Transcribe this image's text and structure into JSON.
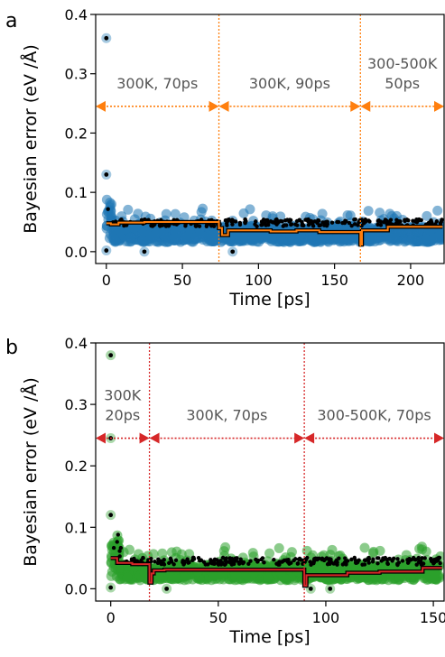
{
  "figure": {
    "panels": [
      {
        "label": "a",
        "xlabel": "Time [ps]",
        "ylabel": "Bayesian error (eV /Å)",
        "xlim": [
          -7,
          222
        ],
        "ylim": [
          -0.02,
          0.4
        ],
        "xticks": [
          0,
          50,
          100,
          150,
          200
        ],
        "yticks": [
          0.0,
          0.1,
          0.2,
          0.3,
          0.4
        ],
        "ytick_labels": [
          "0.0",
          "0.1",
          "0.2",
          "0.3",
          "0.4"
        ],
        "accent": "#ff7f0e",
        "scatter_color": "#1f77b4",
        "boundaries": [
          74,
          167
        ],
        "arrow_y": 0.245,
        "segments": [
          {
            "lines": [
              "300K, 70ps"
            ],
            "from": -7,
            "to": 74
          },
          {
            "lines": [
              "300K, 90ps"
            ],
            "from": 74,
            "to": 167
          },
          {
            "lines": [
              "300-500K",
              "50ps"
            ],
            "from": 167,
            "to": 222
          }
        ],
        "seed": 7,
        "tmax": 221,
        "base": 0.03,
        "band": 0.028,
        "mean_steps": [
          [
            0,
            0.048
          ],
          [
            3,
            0.046
          ],
          [
            8,
            0.049
          ],
          [
            25,
            0.05
          ],
          [
            74,
            0.04
          ],
          [
            76,
            0.028
          ],
          [
            80,
            0.036
          ],
          [
            108,
            0.034
          ],
          [
            125,
            0.036
          ],
          [
            140,
            0.033
          ],
          [
            167,
            0.012
          ],
          [
            168,
            0.036
          ],
          [
            185,
            0.042
          ]
        ],
        "outliers": [
          [
            0,
            0.36
          ],
          [
            0,
            0.13
          ],
          [
            0,
            0.002
          ],
          [
            25,
            0.0
          ],
          [
            83,
            0.0
          ]
        ]
      },
      {
        "label": "b",
        "xlabel": "Time [ps]",
        "ylabel": "Bayesian error (eV /Å)",
        "xlim": [
          -7,
          155
        ],
        "ylim": [
          -0.02,
          0.4
        ],
        "xticks": [
          0,
          50,
          100,
          150
        ],
        "yticks": [
          0.0,
          0.1,
          0.2,
          0.3,
          0.4
        ],
        "ytick_labels": [
          "0.0",
          "0.1",
          "0.2",
          "0.3",
          "0.4"
        ],
        "accent": "#d62728",
        "scatter_color": "#2ca02c",
        "boundaries": [
          18,
          90
        ],
        "arrow_y": 0.245,
        "segments": [
          {
            "lines": [
              "300K",
              "20ps"
            ],
            "from": -7,
            "to": 18
          },
          {
            "lines": [
              "300K, 70ps"
            ],
            "from": 18,
            "to": 90
          },
          {
            "lines": [
              "300-500K, 70ps"
            ],
            "from": 90,
            "to": 155
          }
        ],
        "seed": 13,
        "tmax": 154,
        "base": 0.027,
        "band": 0.026,
        "mean_steps": [
          [
            0,
            0.05
          ],
          [
            3,
            0.042
          ],
          [
            10,
            0.04
          ],
          [
            18,
            0.01
          ],
          [
            19,
            0.025
          ],
          [
            20,
            0.03
          ],
          [
            25,
            0.031
          ],
          [
            90,
            0.005
          ],
          [
            91,
            0.022
          ],
          [
            110,
            0.026
          ],
          [
            125,
            0.028
          ],
          [
            145,
            0.034
          ]
        ],
        "outliers": [
          [
            0,
            0.38
          ],
          [
            0,
            0.245
          ],
          [
            0,
            0.12
          ],
          [
            0,
            0.002
          ],
          [
            26,
            0.0
          ],
          [
            93,
            0.0
          ],
          [
            102,
            0.0
          ]
        ]
      }
    ]
  }
}
